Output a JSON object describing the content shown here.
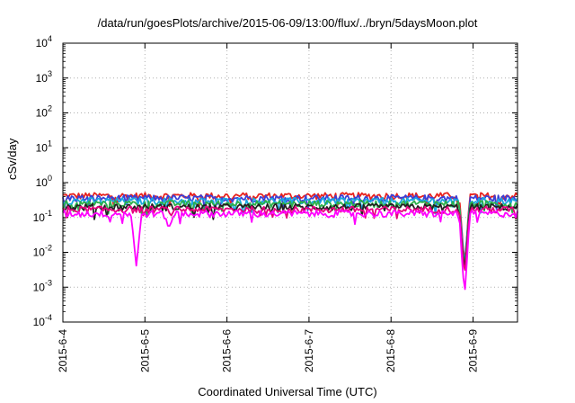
{
  "chart_data": {
    "type": "line",
    "title": "/data/run/goesPlots/archive/2015-06-09/13:00/flux/../bryn/5daysMoon.plot",
    "xlabel": "Coordinated Universal Time (UTC)",
    "ylabel": "cSv/day",
    "x_range": [
      "2015-06-04",
      "2015-06-09 13:00"
    ],
    "y_scale": "log",
    "ylim": [
      0.0001,
      10000
    ],
    "y_ticks": [
      {
        "base": "10",
        "exp": "4"
      },
      {
        "base": "10",
        "exp": "3"
      },
      {
        "base": "10",
        "exp": "2"
      },
      {
        "base": "10",
        "exp": "1"
      },
      {
        "base": "10",
        "exp": "0"
      },
      {
        "base": "10",
        "exp": "-1"
      },
      {
        "base": "10",
        "exp": "-2"
      },
      {
        "base": "10",
        "exp": "-3"
      },
      {
        "base": "10",
        "exp": "-4"
      }
    ],
    "x_tick_labels": [
      "2015-6-4",
      "2015-6-5",
      "2015-6-6",
      "2015-6-7",
      "2015-6-8",
      "2015-6-9"
    ],
    "grid": true,
    "legend": "none",
    "series": [
      {
        "color": "#e8231f",
        "baseline": 0.42,
        "dips": [
          {
            "x": "2015-06-08 21:30",
            "y": 0.004
          }
        ]
      },
      {
        "color": "#3b3fd8",
        "baseline": 0.36,
        "dips": [
          {
            "x": "2015-06-08 21:30",
            "y": 0.003
          }
        ]
      },
      {
        "color": "#1aa7e0",
        "baseline": 0.3,
        "dips": [
          {
            "x": "2015-06-08 21:30",
            "y": 0.0035
          }
        ]
      },
      {
        "color": "#2bb04a",
        "baseline": 0.25,
        "dips": [
          {
            "x": "2015-06-08 21:30",
            "y": 0.003
          }
        ]
      },
      {
        "color": "#222222",
        "baseline": 0.2,
        "dips": [
          {
            "x": "2015-06-08 21:30",
            "y": 0.0025
          }
        ]
      },
      {
        "color": "#e6007e",
        "baseline": 0.17,
        "dips": [
          {
            "x": "2015-06-08 21:30",
            "y": 0.002
          }
        ]
      },
      {
        "color": "#ff00ff",
        "baseline": 0.13,
        "dips": [
          {
            "x": "2015-06-04 21:30",
            "y": 0.004
          },
          {
            "x": "2015-06-05 07:00",
            "y": 0.05
          },
          {
            "x": "2015-06-08 21:30",
            "y": 0.0005
          }
        ]
      }
    ]
  }
}
